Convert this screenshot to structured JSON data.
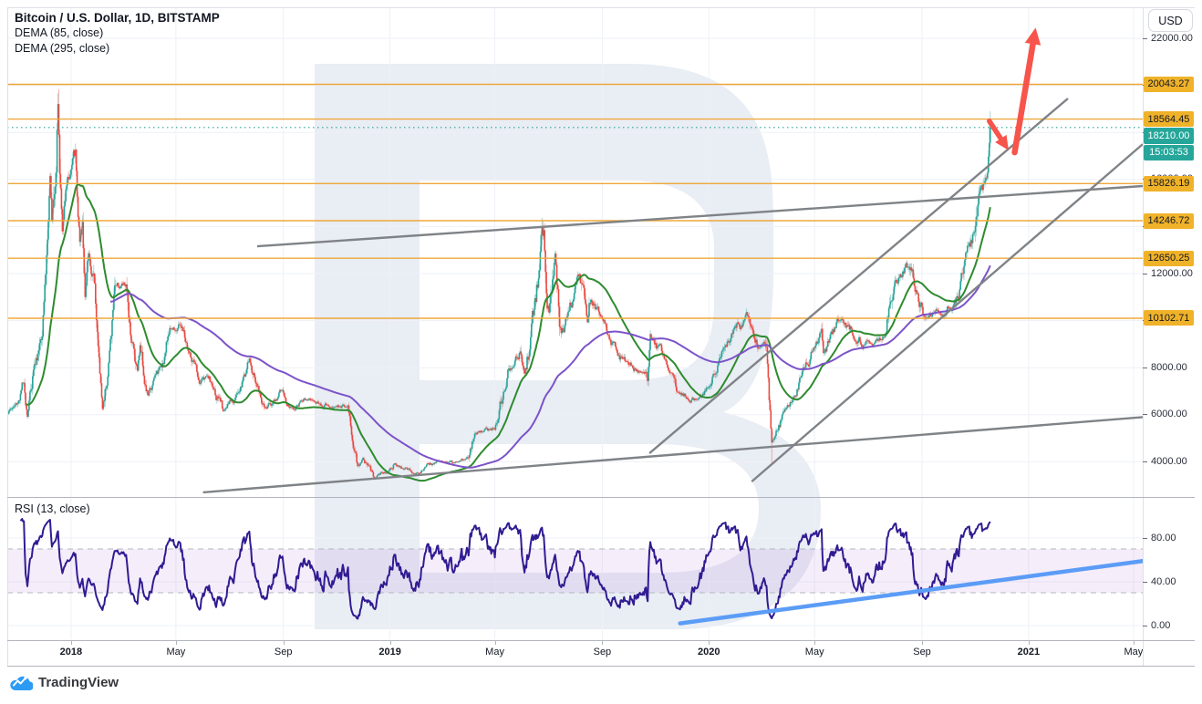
{
  "header": {
    "title": "Bitcoin / U.S. Dollar, 1D, BITSTAMP",
    "indicators": [
      "DEMA (85, close)",
      "DEMA (295, close)"
    ]
  },
  "currency_button": "USD",
  "watermark_symbol": "B",
  "rsi_pane": {
    "label": "RSI (13, close)",
    "band": [
      30,
      70
    ],
    "grid_labels": [
      "80.00",
      "40.00",
      "0.00"
    ],
    "grid_values": [
      80,
      40,
      0
    ]
  },
  "brand": "TradingView",
  "price_axis": {
    "grid_labels": [
      "22000.00",
      "20000.00",
      "18000.00",
      "16000.00",
      "14000.00",
      "12000.00",
      "10000.00",
      "8000.00",
      "6000.00",
      "4000.00"
    ],
    "grid_values": [
      22000,
      20000,
      18000,
      16000,
      14000,
      12000,
      10000,
      8000,
      6000,
      4000
    ],
    "levels": [
      {
        "value": 20043.27,
        "label": "20043.27"
      },
      {
        "value": 18564.45,
        "label": "18564.45"
      },
      {
        "value": 15826.19,
        "label": "15826.19"
      },
      {
        "value": 14246.72,
        "label": "14246.72"
      },
      {
        "value": 12650.25,
        "label": "12650.25"
      },
      {
        "value": 10102.71,
        "label": "10102.71"
      }
    ],
    "last_price": {
      "value": 18210.0,
      "label": "18210.00"
    },
    "countdown": "15:03:53"
  },
  "time_axis": {
    "ticks": [
      {
        "label": "2018",
        "date": "2018-01-01",
        "bold": true
      },
      {
        "label": "May",
        "date": "2018-05-01",
        "bold": false
      },
      {
        "label": "Sep",
        "date": "2018-09-01",
        "bold": false
      },
      {
        "label": "2019",
        "date": "2019-01-01",
        "bold": true
      },
      {
        "label": "May",
        "date": "2019-05-01",
        "bold": false
      },
      {
        "label": "Sep",
        "date": "2019-09-01",
        "bold": false
      },
      {
        "label": "2020",
        "date": "2020-01-01",
        "bold": true
      },
      {
        "label": "May",
        "date": "2020-05-01",
        "bold": false
      },
      {
        "label": "Sep",
        "date": "2020-09-01",
        "bold": false
      },
      {
        "label": "2021",
        "date": "2021-01-01",
        "bold": true
      },
      {
        "label": "May",
        "date": "2021-05-01",
        "bold": false
      }
    ]
  },
  "colors": {
    "up": "#2AA298",
    "down": "#E84A42",
    "up_wick": "rgba(42,162,152,0.45)",
    "down_wick": "rgba(232,74,66,0.45)",
    "dema_fast": "#2E8B2E",
    "dema_slow": "#7C53C9",
    "rsi_line": "#311B92",
    "rsi_band_fill": "rgba(156,80,202,0.10)",
    "rsi_band_edge": "#b4b7bf",
    "level_line": "#EFA83A",
    "level_badge": "#EFB229",
    "last_price": "#26A69A",
    "trendline_gray": "#7F8387",
    "arrow_red": "#F7544B",
    "rsi_trend_blue": "#5B9CF6",
    "grid": "#eef1f7",
    "watermark": "#e9edf4",
    "axis_text": "#2a2e39"
  },
  "chart_data": {
    "type": "candlestick",
    "symbol": "Bitcoin / U.S. Dollar",
    "exchange": "BITSTAMP",
    "interval": "1D",
    "start_date": "2017-10-20",
    "end_date": "2020-11-18",
    "visible_price_range": [
      2500,
      23300
    ],
    "last_close": 18210.0,
    "price_path_anchors": [
      [
        "2017-10-20",
        6050
      ],
      [
        "2017-11-01",
        6500
      ],
      [
        "2017-11-08",
        7400
      ],
      [
        "2017-11-12",
        5950
      ],
      [
        "2017-11-19",
        8000
      ],
      [
        "2017-11-25",
        8750
      ],
      [
        "2017-12-01",
        10950
      ],
      [
        "2017-12-08",
        16050
      ],
      [
        "2017-12-10",
        14300
      ],
      [
        "2017-12-17",
        19450
      ],
      [
        "2017-12-22",
        13800
      ],
      [
        "2017-12-26",
        15750
      ],
      [
        "2018-01-06",
        17100
      ],
      [
        "2018-01-11",
        13250
      ],
      [
        "2018-01-14",
        14150
      ],
      [
        "2018-01-17",
        11150
      ],
      [
        "2018-01-21",
        12850
      ],
      [
        "2018-01-28",
        11700
      ],
      [
        "2018-02-06",
        6250
      ],
      [
        "2018-02-20",
        11550
      ],
      [
        "2018-03-05",
        11450
      ],
      [
        "2018-03-18",
        7950
      ],
      [
        "2018-03-21",
        8950
      ],
      [
        "2018-03-30",
        6850
      ],
      [
        "2018-04-12",
        7950
      ],
      [
        "2018-04-24",
        9650
      ],
      [
        "2018-05-06",
        9850
      ],
      [
        "2018-05-28",
        7300
      ],
      [
        "2018-06-06",
        7650
      ],
      [
        "2018-06-24",
        6150
      ],
      [
        "2018-07-08",
        6750
      ],
      [
        "2018-07-24",
        8350
      ],
      [
        "2018-08-11",
        6250
      ],
      [
        "2018-08-28",
        7050
      ],
      [
        "2018-09-08",
        6300
      ],
      [
        "2018-09-27",
        6650
      ],
      [
        "2018-10-31",
        6350
      ],
      [
        "2018-11-14",
        6350
      ],
      [
        "2018-11-20",
        4650
      ],
      [
        "2018-11-25",
        3800
      ],
      [
        "2018-12-01",
        4150
      ],
      [
        "2018-12-15",
        3250
      ],
      [
        "2019-01-06",
        3950
      ],
      [
        "2019-01-28",
        3480
      ],
      [
        "2019-02-24",
        4050
      ],
      [
        "2019-03-15",
        3950
      ],
      [
        "2019-04-01",
        4150
      ],
      [
        "2019-04-08",
        5200
      ],
      [
        "2019-05-01",
        5400
      ],
      [
        "2019-05-16",
        7950
      ],
      [
        "2019-05-30",
        8700
      ],
      [
        "2019-06-04",
        7750
      ],
      [
        "2019-06-26",
        13750
      ],
      [
        "2019-07-02",
        10450
      ],
      [
        "2019-07-09",
        12850
      ],
      [
        "2019-07-16",
        9600
      ],
      [
        "2019-08-06",
        11900
      ],
      [
        "2019-08-15",
        9850
      ],
      [
        "2019-08-19",
        10850
      ],
      [
        "2019-09-24",
        8450
      ],
      [
        "2019-10-23",
        7500
      ],
      [
        "2019-10-26",
        9300
      ],
      [
        "2019-11-21",
        7650
      ],
      [
        "2019-11-25",
        7000
      ],
      [
        "2019-12-18",
        6650
      ],
      [
        "2020-01-03",
        7250
      ],
      [
        "2020-01-19",
        8850
      ],
      [
        "2020-02-13",
        10350
      ],
      [
        "2020-02-26",
        8850
      ],
      [
        "2020-03-07",
        8950
      ],
      [
        "2020-03-13",
        4800
      ],
      [
        "2020-03-16",
        5000
      ],
      [
        "2020-03-28",
        6200
      ],
      [
        "2020-04-29",
        8800
      ],
      [
        "2020-05-09",
        9550
      ],
      [
        "2020-05-11",
        8600
      ],
      [
        "2020-06-01",
        10150
      ],
      [
        "2020-06-27",
        9050
      ],
      [
        "2020-07-21",
        9350
      ],
      [
        "2020-08-01",
        11750
      ],
      [
        "2020-08-17",
        12300
      ],
      [
        "2020-09-05",
        10150
      ],
      [
        "2020-09-23",
        10250
      ],
      [
        "2020-10-07",
        10650
      ],
      [
        "2020-10-21",
        12800
      ],
      [
        "2020-10-31",
        13800
      ],
      [
        "2020-11-05",
        15550
      ],
      [
        "2020-11-12",
        15900
      ],
      [
        "2020-11-15",
        16300
      ],
      [
        "2020-11-18",
        18210
      ]
    ],
    "wick_overrides": {
      "2017-12-17": {
        "high": 19660
      },
      "2019-06-26": {
        "high": 13970
      },
      "2020-03-13": {
        "low": 3858
      },
      "2020-11-17": {
        "high": 18560
      },
      "2020-11-18": {
        "high": 18900,
        "low": 17350
      }
    },
    "horizontal_levels": [
      20043.27,
      18564.45,
      15826.19,
      14246.72,
      12650.25,
      10102.71
    ],
    "indicators": [
      {
        "name": "DEMA",
        "length": 85,
        "source": "close"
      },
      {
        "name": "DEMA",
        "length": 295,
        "source": "close"
      },
      {
        "name": "RSI",
        "length": 13,
        "source": "close",
        "pane": "lower"
      }
    ],
    "trendlines": [
      {
        "id": "lower-channel",
        "points": [
          [
            "2018-06-01",
            2700
          ],
          [
            "2021-05-12",
            5900
          ]
        ]
      },
      {
        "id": "upper-channel",
        "points": [
          [
            "2018-08-02",
            13160
          ],
          [
            "2021-05-12",
            15720
          ]
        ]
      },
      {
        "id": "steep-channel-1",
        "points": [
          [
            "2019-10-25",
            4360
          ],
          [
            "2021-02-15",
            19440
          ]
        ]
      },
      {
        "id": "steep-channel-2",
        "points": [
          [
            "2020-02-19",
            3160
          ],
          [
            "2021-05-12",
            17500
          ]
        ]
      }
    ],
    "arrows": [
      {
        "id": "projection-up",
        "from": [
          "2020-12-16",
          17150
        ],
        "to": [
          "2021-01-09",
          22450
        ],
        "width": 6.5
      },
      {
        "id": "pullback-down",
        "from": [
          "2020-11-17",
          18480
        ],
        "to": [
          "2020-12-09",
          17240
        ],
        "width": 5.5
      }
    ],
    "rsi_trendline": {
      "points_rsi": [
        [
          "2019-11-29",
          2
        ],
        [
          "2021-05-12",
          59
        ]
      ]
    }
  }
}
